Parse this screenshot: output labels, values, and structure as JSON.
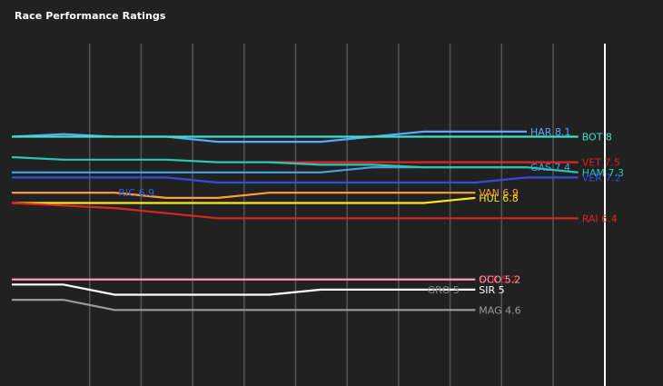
{
  "page": {
    "title": "Race Performance Ratings"
  },
  "chart_data": {
    "type": "line",
    "title": "Race Performance Ratings",
    "xlabel": "",
    "ylabel": "",
    "x": [
      1,
      2,
      3,
      4,
      5,
      6,
      7,
      8,
      9,
      10,
      11,
      12
    ],
    "ylim": [
      4.0,
      8.9
    ],
    "grid": true,
    "series": [
      {
        "name": "HAR",
        "label": "HAR 8.1",
        "color": "#5aa8ff",
        "values": [
          8.0,
          8.05,
          8.0,
          8.0,
          7.9,
          7.9,
          7.9,
          8.0,
          8.1,
          8.1,
          8.1,
          null
        ]
      },
      {
        "name": "BOT",
        "label": "BOT 8",
        "color": "#40e0c8",
        "values": [
          8.0,
          8.0,
          8.0,
          8.0,
          8.0,
          8.0,
          8.0,
          8.0,
          8.0,
          8.0,
          8.0,
          8.0
        ]
      },
      {
        "name": "VET",
        "label": "VET 7.5",
        "color": "#e02424",
        "values": [
          null,
          null,
          null,
          null,
          null,
          7.5,
          7.5,
          7.5,
          7.5,
          7.5,
          7.5,
          7.5
        ]
      },
      {
        "name": "GAS",
        "label": "GAS 7.4",
        "color": "#4aa3e0",
        "values": [
          7.3,
          7.3,
          7.3,
          7.3,
          7.3,
          7.3,
          7.3,
          7.4,
          7.4,
          7.4,
          7.4,
          null
        ]
      },
      {
        "name": "HAM",
        "label": "HAM 7.3",
        "color": "#2ec4b6",
        "values": [
          7.6,
          7.55,
          7.55,
          7.55,
          7.5,
          7.5,
          7.45,
          7.45,
          7.4,
          7.4,
          7.4,
          7.3
        ]
      },
      {
        "name": "VER",
        "label": "VER 7.2",
        "color": "#2f4fd8",
        "values": [
          7.2,
          7.2,
          7.2,
          7.2,
          7.1,
          7.1,
          7.1,
          7.1,
          7.1,
          7.1,
          7.2,
          7.2
        ]
      },
      {
        "name": "RIC",
        "label": "RIC 6.9",
        "color": "#3a5ad8",
        "values": [
          6.9,
          6.9,
          6.9,
          null,
          null,
          null,
          null,
          null,
          null,
          null,
          null,
          null
        ]
      },
      {
        "name": "VAN",
        "label": "VAN 6.9",
        "color": "#ff9e3a",
        "values": [
          6.9,
          6.9,
          6.9,
          6.8,
          6.8,
          6.9,
          6.9,
          6.9,
          6.9,
          6.9,
          null,
          null
        ]
      },
      {
        "name": "HUL",
        "label": "HUL 6.8",
        "color": "#ffe81a",
        "values": [
          6.7,
          6.7,
          6.7,
          6.7,
          6.7,
          6.7,
          6.7,
          6.7,
          6.7,
          6.8,
          null,
          null
        ]
      },
      {
        "name": "RAI",
        "label": "RAI 6.4",
        "color": "#e02424",
        "values": [
          6.7,
          6.65,
          6.6,
          6.5,
          6.4,
          6.4,
          6.4,
          6.4,
          6.4,
          6.4,
          6.4,
          6.4
        ]
      },
      {
        "name": "STR",
        "label": "STR 5.2",
        "color": "#e02424",
        "values": [
          5.2,
          5.2,
          5.2,
          5.2,
          5.2,
          5.2,
          5.2,
          5.2,
          5.2,
          5.2,
          null,
          null
        ]
      },
      {
        "name": "OCO",
        "label": "OCO 5.2",
        "color": "#ff9ec0",
        "values": [
          5.2,
          5.2,
          5.2,
          5.2,
          5.2,
          5.2,
          5.2,
          5.2,
          5.2,
          5.2,
          null,
          null
        ]
      },
      {
        "name": "GRO",
        "label": "GRO 5",
        "color": "#888888",
        "values": [
          null,
          null,
          null,
          null,
          null,
          null,
          null,
          null,
          5.0,
          null,
          null,
          null
        ]
      },
      {
        "name": "SIR",
        "label": "SIR 5",
        "color": "#ffffff",
        "values": [
          5.1,
          5.1,
          4.9,
          4.9,
          4.9,
          4.9,
          5.0,
          5.0,
          5.0,
          5.0,
          null,
          null
        ]
      },
      {
        "name": "MAG",
        "label": "MAG 4.6",
        "color": "#9a9a9a",
        "values": [
          4.8,
          4.8,
          4.6,
          4.6,
          4.6,
          4.6,
          4.6,
          4.6,
          4.6,
          4.6,
          null,
          null
        ]
      }
    ]
  }
}
